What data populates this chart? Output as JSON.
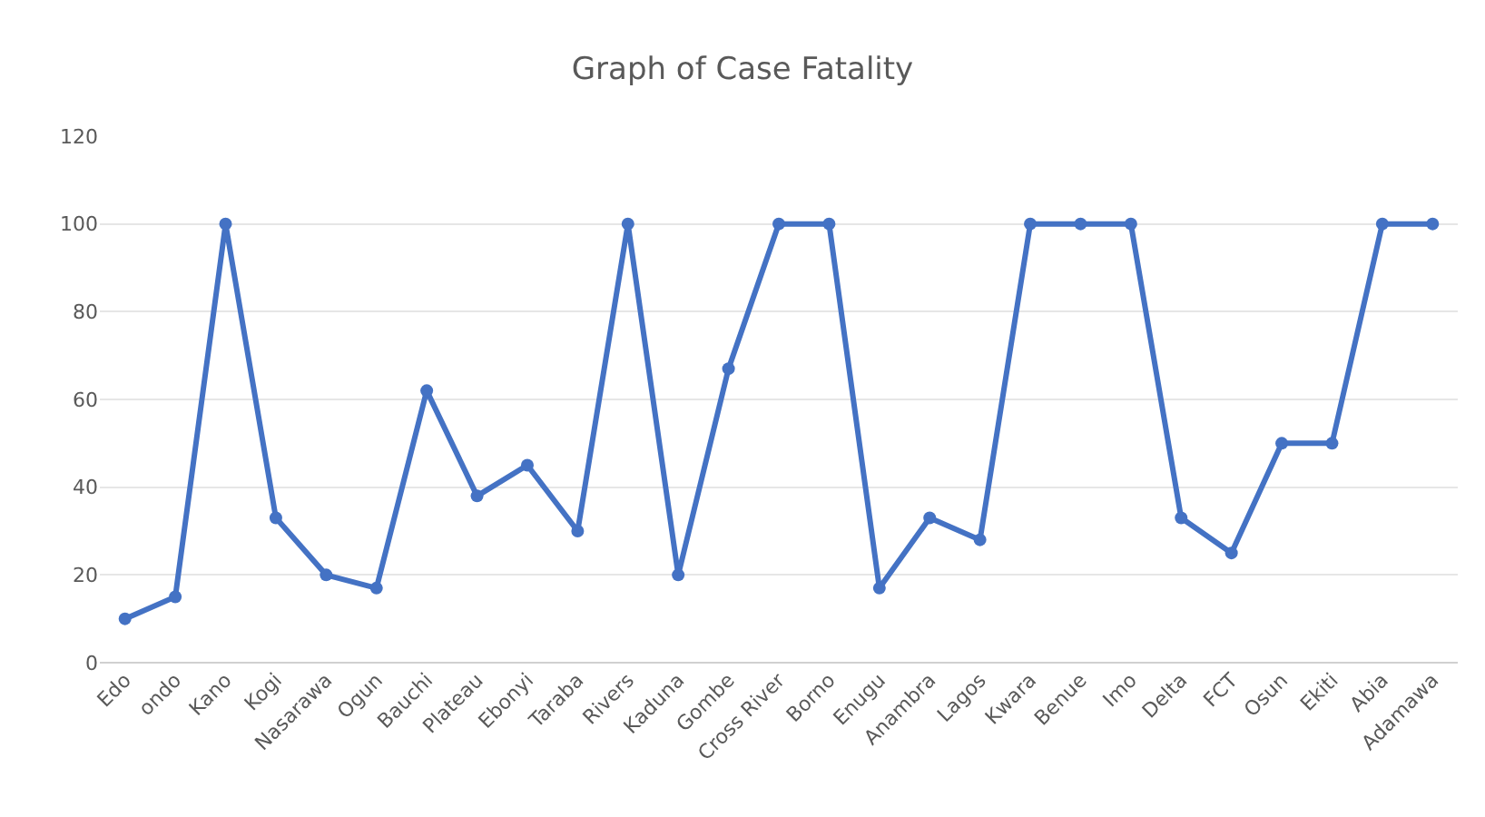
{
  "chart_data": {
    "type": "line",
    "title": "Graph of Case Fatality",
    "categories": [
      "Edo",
      "ondo",
      "Kano",
      "Kogi",
      "Nasarawa",
      "Ogun",
      "Bauchi",
      "Plateau",
      "Ebonyi",
      "Taraba",
      "Rivers",
      "Kaduna",
      "Gombe",
      "Cross River",
      "Borno",
      "Enugu",
      "Anambra",
      "Lagos",
      "Kwara",
      "Benue",
      "Imo",
      "Delta",
      "FCT",
      "Osun",
      "Ekiti",
      "Abia",
      "Adamawa"
    ],
    "series": [
      {
        "color": "#4472c4",
        "values": [
          10,
          15,
          100,
          33,
          20,
          17,
          62,
          38,
          45,
          30,
          100,
          20,
          67,
          100,
          100,
          17,
          33,
          28,
          100,
          100,
          100,
          33,
          25,
          50,
          50,
          100,
          100
        ]
      }
    ],
    "ylim": [
      0,
      120
    ],
    "yticks": [
      0,
      20,
      40,
      60,
      80,
      100,
      120
    ],
    "grid": "y",
    "legend": false,
    "marker": "circle",
    "line_style": "solid"
  }
}
